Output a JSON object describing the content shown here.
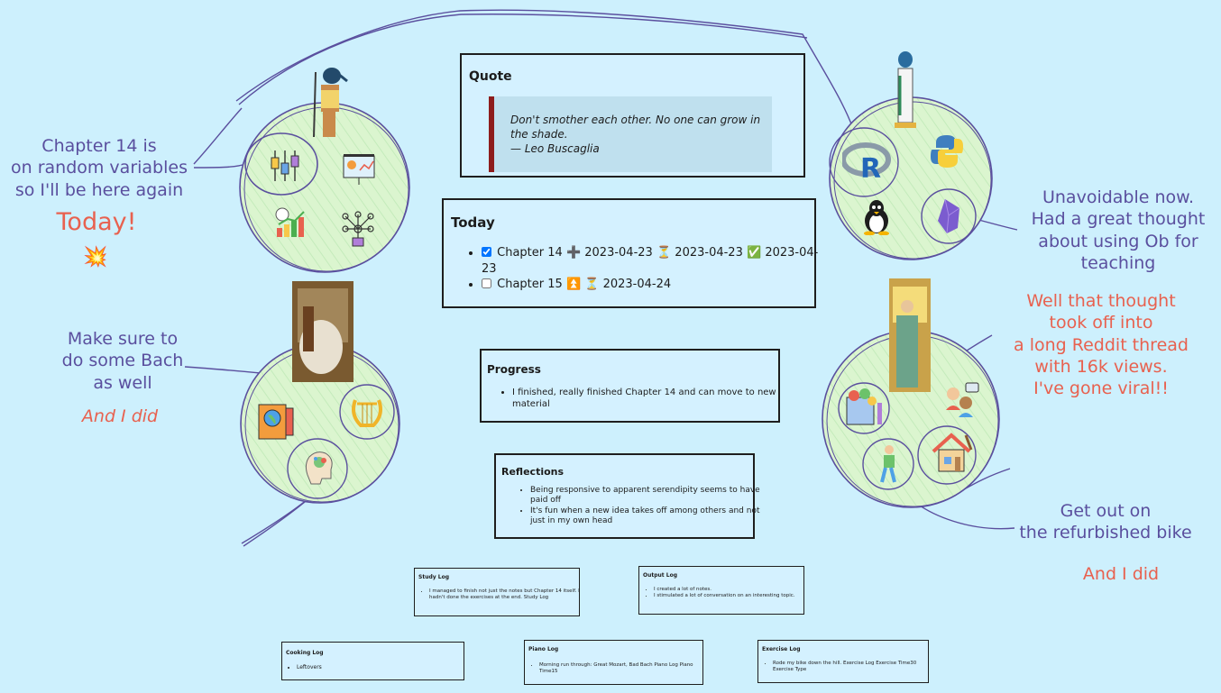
{
  "notes": {
    "chapter14": [
      "Chapter 14 is",
      "on random variables",
      "so I'll be here again"
    ],
    "today_exclaim": "Today!",
    "boom_emoji": "💥",
    "bach": [
      "Make sure to",
      "do some Bach",
      "as well"
    ],
    "bach_done": "And I did",
    "unavoidable": [
      "Unavoidable now.",
      "Had a great thought",
      "about using Ob for",
      "teaching"
    ],
    "viral": [
      "Well that thought",
      "took off into",
      "a long Reddit thread",
      "with 16k views.",
      "I've gone viral!!"
    ],
    "bike": [
      "Get out on",
      "the refurbished bike"
    ],
    "bike_done": "And I did"
  },
  "quote": {
    "title": "Quote",
    "line1": "Don't smother each other. No one can grow in",
    "line2": "the shade.",
    "attribution": "— Leo Buscaglia"
  },
  "today": {
    "title": "Today",
    "task1": {
      "checked": true,
      "text": "Chapter 14",
      "created_emoji": "➕",
      "created": "2023-04-23",
      "sched_emoji": "⏳",
      "scheduled": "2023-04-23",
      "done_emoji": "✅",
      "done": "2023-04-23"
    },
    "task2": {
      "checked": false,
      "text": "Chapter 15",
      "prio_emoji": "⏫",
      "sched_emoji": "⏳",
      "scheduled": "2023-04-24"
    }
  },
  "progress": {
    "title": "Progress",
    "item1": "I finished, really finished Chapter 14 and can move to new material"
  },
  "reflections": {
    "title": "Reflections",
    "item1": "Being responsive to apparent serendipity seems to have paid off",
    "item2": "It's fun when a new idea takes off among others and not just in my own head"
  },
  "study_log": {
    "title": "Study Log",
    "item1": "I managed to finish not just the notes but Chapter 14 itself. I hadn't done the exercises at the end. Study Log"
  },
  "output_log": {
    "title": "Output Log",
    "item1": "I created a lot of notes.",
    "item2": "I stimulated a lot of conversation on an interesting topic."
  },
  "cooking_log": {
    "title": "Cooking Log",
    "item1": "Leftovers"
  },
  "piano_log": {
    "title": "Piano Log",
    "item1": "Morning run through: Great Mozart, Bad Bach Piano Log Piano Time15"
  },
  "exercise_log": {
    "title": "Exercise Log",
    "item1": "Rode my bike down the hill. Exercise Log Exercise Time30 Exercise Type"
  },
  "icons": {
    "circuit": "circuit-icon",
    "presentation": "presentation-icon",
    "chart_growth": "chart-growth-icon",
    "network": "network-icon",
    "r_logo": "r-logo-icon",
    "python_logo": "python-logo-icon",
    "linux": "linux-penguin-icon",
    "obsidian": "obsidian-icon",
    "book_globe": "book-globe-icon",
    "lyre": "lyre-icon",
    "brain": "brain-icon",
    "painting": "painting-icon",
    "conversation": "conversation-icon",
    "walking": "walking-person-icon",
    "house_clean": "house-cleaning-icon"
  },
  "colors": {
    "background": "#cdf0fd",
    "ink_purple": "#5a4f9e",
    "ink_red": "#e8614f",
    "circle_fill": "#d9f5d2",
    "quote_bar": "#8d1c1c"
  }
}
